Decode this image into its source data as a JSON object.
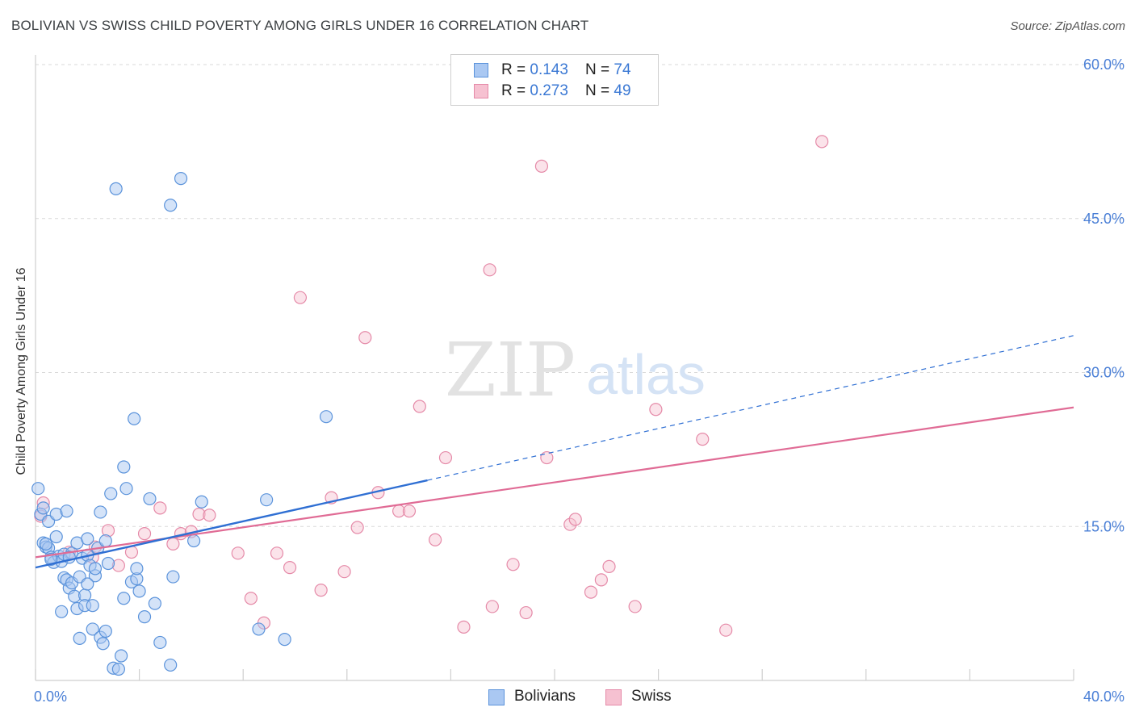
{
  "header": {
    "title": "BOLIVIAN VS SWISS CHILD POVERTY AMONG GIRLS UNDER 16 CORRELATION CHART",
    "source": "Source: ZipAtlas.com"
  },
  "watermark": {
    "zip": "ZIP",
    "atlas": "atlas"
  },
  "colors": {
    "blue_fill": "#aac8f2",
    "blue_stroke": "#5b93db",
    "blue_line": "#2f6fd3",
    "pink_fill": "#f6c1d1",
    "pink_stroke": "#e58aa8",
    "pink_line": "#e06b95",
    "tick_text": "#4a7fd6",
    "grid": "#d9d9d9"
  },
  "legend": {
    "rows": [
      {
        "name": "Bolivians",
        "r_label": "R = ",
        "r_value": "0.143",
        "n_label": "N = ",
        "n_value": "74"
      },
      {
        "name": "Swiss",
        "r_label": "R = ",
        "r_value": "0.273",
        "n_label": "N = ",
        "n_value": "49"
      }
    ]
  },
  "chart_data": {
    "type": "scatter",
    "title": "BOLIVIAN VS SWISS CHILD POVERTY AMONG GIRLS UNDER 16 CORRELATION CHART",
    "xlabel": "",
    "ylabel": "Child Poverty Among Girls Under 16",
    "xlim": [
      0,
      40
    ],
    "ylim": [
      0,
      60
    ],
    "x_tick_labels": [
      "0.0%",
      "40.0%"
    ],
    "y_ticks": [
      15,
      30,
      45,
      60
    ],
    "y_tick_labels": [
      "15.0%",
      "30.0%",
      "45.0%",
      "60.0%"
    ],
    "series": [
      {
        "name": "Bolivians",
        "R": 0.143,
        "N": 74,
        "trend": {
          "x0": 0,
          "y0": 11.0,
          "x1": 15.1,
          "y1": 19.5,
          "dash_to_x": 40,
          "dash_to_y": 33.6
        },
        "points": [
          [
            0.1,
            18.7
          ],
          [
            0.2,
            16.2
          ],
          [
            0.3,
            16.8
          ],
          [
            0.3,
            13.4
          ],
          [
            0.4,
            13.0
          ],
          [
            0.5,
            12.9
          ],
          [
            0.5,
            15.5
          ],
          [
            0.6,
            12.0
          ],
          [
            0.7,
            11.5
          ],
          [
            0.8,
            14.0
          ],
          [
            0.8,
            16.2
          ],
          [
            0.9,
            12.1
          ],
          [
            1.0,
            11.6
          ],
          [
            1.1,
            12.3
          ],
          [
            1.0,
            6.7
          ],
          [
            1.1,
            10.0
          ],
          [
            1.2,
            9.8
          ],
          [
            1.2,
            16.5
          ],
          [
            1.3,
            9.0
          ],
          [
            1.4,
            9.5
          ],
          [
            1.4,
            12.4
          ],
          [
            1.5,
            8.2
          ],
          [
            1.6,
            13.4
          ],
          [
            1.6,
            7.0
          ],
          [
            1.7,
            4.1
          ],
          [
            1.7,
            10.1
          ],
          [
            1.8,
            11.9
          ],
          [
            1.9,
            8.3
          ],
          [
            1.9,
            7.3
          ],
          [
            2.0,
            12.2
          ],
          [
            2.0,
            13.8
          ],
          [
            2.1,
            11.2
          ],
          [
            2.2,
            5.0
          ],
          [
            2.2,
            7.3
          ],
          [
            2.3,
            10.2
          ],
          [
            2.3,
            10.9
          ],
          [
            2.4,
            12.9
          ],
          [
            2.5,
            4.2
          ],
          [
            2.5,
            16.4
          ],
          [
            2.6,
            3.6
          ],
          [
            2.7,
            13.6
          ],
          [
            2.7,
            4.8
          ],
          [
            2.8,
            11.4
          ],
          [
            2.9,
            18.2
          ],
          [
            3.0,
            1.2
          ],
          [
            3.1,
            47.9
          ],
          [
            3.2,
            1.1
          ],
          [
            3.3,
            2.4
          ],
          [
            3.4,
            8.0
          ],
          [
            3.4,
            20.8
          ],
          [
            3.5,
            18.7
          ],
          [
            3.7,
            9.6
          ],
          [
            3.8,
            25.5
          ],
          [
            3.9,
            9.9
          ],
          [
            3.9,
            10.9
          ],
          [
            4.0,
            8.7
          ],
          [
            4.2,
            6.2
          ],
          [
            4.4,
            17.7
          ],
          [
            4.6,
            7.5
          ],
          [
            4.8,
            3.7
          ],
          [
            5.2,
            46.3
          ],
          [
            5.2,
            1.5
          ],
          [
            5.3,
            10.1
          ],
          [
            5.6,
            48.9
          ],
          [
            6.1,
            13.6
          ],
          [
            6.4,
            17.4
          ],
          [
            8.6,
            5.0
          ],
          [
            8.9,
            17.6
          ],
          [
            9.6,
            4.0
          ],
          [
            11.2,
            25.7
          ],
          [
            0.4,
            13.3
          ],
          [
            0.6,
            11.8
          ],
          [
            1.3,
            12.0
          ],
          [
            2.0,
            9.4
          ]
        ]
      },
      {
        "name": "Swiss",
        "R": 0.273,
        "N": 49,
        "trend": {
          "x0": 0,
          "y0": 12.0,
          "x1": 40,
          "y1": 26.6
        },
        "points": [
          [
            0.3,
            17.3
          ],
          [
            1.3,
            12.5
          ],
          [
            2.2,
            12.0
          ],
          [
            2.3,
            13.0
          ],
          [
            2.8,
            14.6
          ],
          [
            3.2,
            11.2
          ],
          [
            3.7,
            12.5
          ],
          [
            4.2,
            14.3
          ],
          [
            4.8,
            16.8
          ],
          [
            5.3,
            13.3
          ],
          [
            5.6,
            14.3
          ],
          [
            6.0,
            14.5
          ],
          [
            6.3,
            16.2
          ],
          [
            6.7,
            16.1
          ],
          [
            7.8,
            12.4
          ],
          [
            8.3,
            8.0
          ],
          [
            8.8,
            5.6
          ],
          [
            9.3,
            12.4
          ],
          [
            9.8,
            11.0
          ],
          [
            10.2,
            37.3
          ],
          [
            11.0,
            8.8
          ],
          [
            11.4,
            17.8
          ],
          [
            11.9,
            10.6
          ],
          [
            12.4,
            14.9
          ],
          [
            12.7,
            33.4
          ],
          [
            13.2,
            18.3
          ],
          [
            14.0,
            16.5
          ],
          [
            14.4,
            16.5
          ],
          [
            14.8,
            26.7
          ],
          [
            15.4,
            13.7
          ],
          [
            15.8,
            21.7
          ],
          [
            16.5,
            5.2
          ],
          [
            17.5,
            40.0
          ],
          [
            17.6,
            7.2
          ],
          [
            18.4,
            11.3
          ],
          [
            18.9,
            6.6
          ],
          [
            19.5,
            50.1
          ],
          [
            19.7,
            21.7
          ],
          [
            20.6,
            15.2
          ],
          [
            20.8,
            15.7
          ],
          [
            21.4,
            8.6
          ],
          [
            21.8,
            9.8
          ],
          [
            22.1,
            11.1
          ],
          [
            23.1,
            7.2
          ],
          [
            23.9,
            26.4
          ],
          [
            25.7,
            23.5
          ],
          [
            26.6,
            4.9
          ],
          [
            30.3,
            52.5
          ],
          [
            0.2,
            16.0
          ]
        ]
      }
    ]
  }
}
